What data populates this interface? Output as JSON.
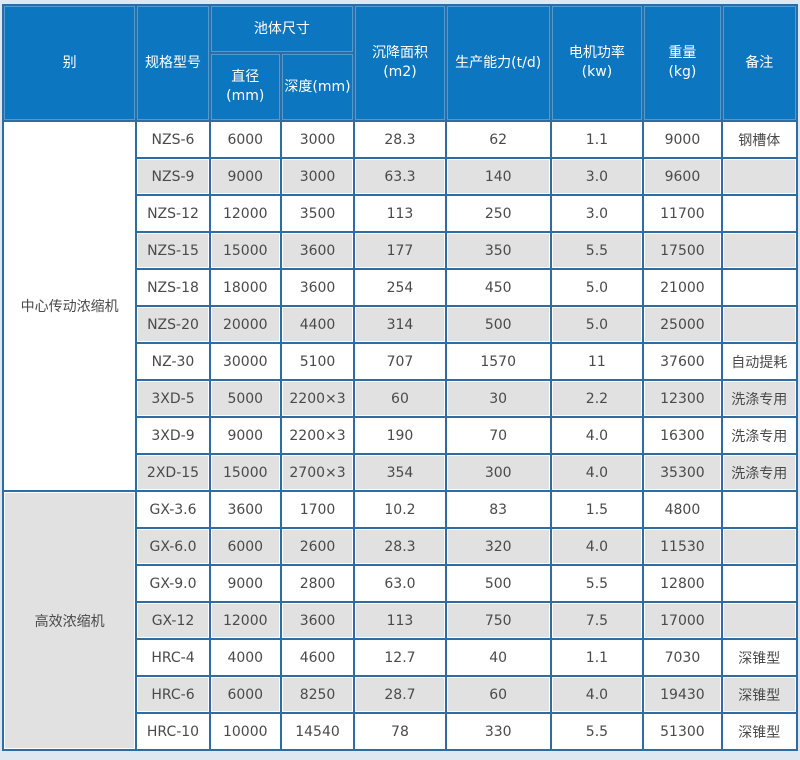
{
  "table": {
    "header": {
      "category": "别",
      "model": "规格型号",
      "pool_size": "池体尺寸",
      "diameter": "直径\n(mm)",
      "depth": "深度(mm)",
      "settling_area": "沉降面积\n(m2)",
      "capacity": "生产能力(t/d)",
      "motor_power": "电机功率\n(kw)",
      "weight": "重量\n(kg)",
      "remark": "备注"
    },
    "sections": [
      {
        "category": "中心传动浓缩机",
        "rows": [
          [
            "NZS-6",
            "6000",
            "3000",
            "28.3",
            "62",
            "1.1",
            "9000",
            "钢槽体"
          ],
          [
            "NZS-9",
            "9000",
            "3000",
            "63.3",
            "140",
            "3.0",
            "9600",
            ""
          ],
          [
            "NZS-12",
            "12000",
            "3500",
            "113",
            "250",
            "3.0",
            "11700",
            ""
          ],
          [
            "NZS-15",
            "15000",
            "3600",
            "177",
            "350",
            "5.5",
            "17500",
            ""
          ],
          [
            "NZS-18",
            "18000",
            "3600",
            "254",
            "450",
            "5.0",
            "21000",
            ""
          ],
          [
            "NZS-20",
            "20000",
            "4400",
            "314",
            "500",
            "5.0",
            "25000",
            ""
          ],
          [
            "NZ-30",
            "30000",
            "5100",
            "707",
            "1570",
            "11",
            "37600",
            "自动提耗"
          ],
          [
            "3XD-5",
            "5000",
            "2200×3",
            "60",
            "30",
            "2.2",
            "12300",
            "洗涤专用"
          ],
          [
            "3XD-9",
            "9000",
            "2200×3",
            "190",
            "70",
            "4.0",
            "16300",
            "洗涤专用"
          ],
          [
            "2XD-15",
            "15000",
            "2700×3",
            "354",
            "300",
            "4.0",
            "35300",
            "洗涤专用"
          ]
        ]
      },
      {
        "category": "高效浓缩机",
        "rows": [
          [
            "GX-3.6",
            "3600",
            "1700",
            "10.2",
            "83",
            "1.5",
            "4800",
            ""
          ],
          [
            "GX-6.0",
            "6000",
            "2600",
            "28.3",
            "320",
            "4.0",
            "11530",
            ""
          ],
          [
            "GX-9.0",
            "9000",
            "2800",
            "63.0",
            "500",
            "5.5",
            "12800",
            ""
          ],
          [
            "GX-12",
            "12000",
            "3600",
            "113",
            "750",
            "7.5",
            "17000",
            ""
          ],
          [
            "HRC-4",
            "4000",
            "4600",
            "12.7",
            "40",
            "1.1",
            "7030",
            "深锥型"
          ],
          [
            "HRC-6",
            "6000",
            "8250",
            "28.7",
            "60",
            "4.0",
            "19430",
            "深锥型"
          ],
          [
            "HRC-10",
            "10000",
            "14540",
            "78",
            "330",
            "5.5",
            "51300",
            "深锥型"
          ]
        ]
      }
    ]
  },
  "colors": {
    "header_bg": "#0d76c0",
    "border": "#2e6da4",
    "row_alt": "#e1e1e1",
    "row_white": "#ffffff",
    "text": "#4a4a4a",
    "header_text": "#ffffff",
    "page_bg": "#dfe8f1"
  }
}
